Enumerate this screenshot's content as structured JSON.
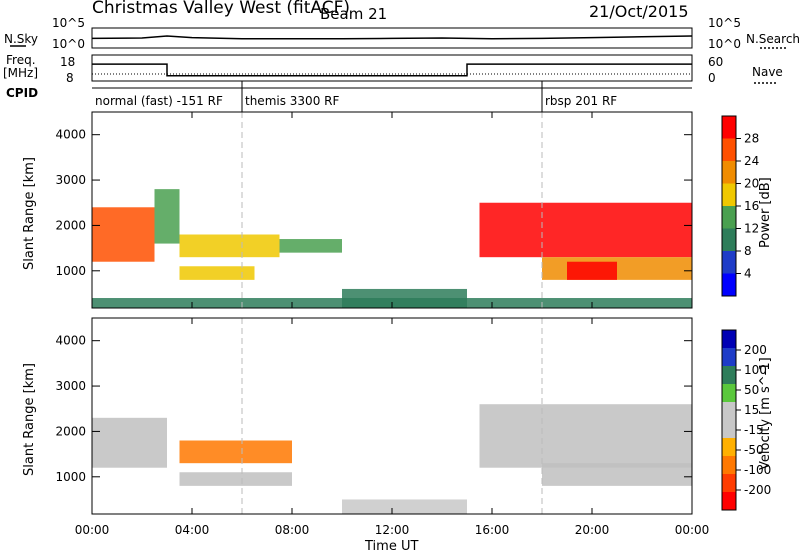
{
  "header": {
    "station": "Christmas Valley West (fitACF)",
    "beam": "Beam 21",
    "date": "21/Oct/2015"
  },
  "left_labels": {
    "nsky": "N.Sky",
    "freq_line1": "Freq.",
    "freq_line2": "[MHz]",
    "cpid": "CPID"
  },
  "right_labels": {
    "nsearch": "N.Search",
    "nave": "Nave"
  },
  "noise_axis": {
    "left_ticks": [
      "10^5",
      "10^0"
    ],
    "right_ticks": [
      "10^5",
      "10^0"
    ]
  },
  "freq_axis": {
    "left_ticks": [
      "18",
      "8"
    ],
    "right_ticks": [
      "60",
      "0"
    ]
  },
  "cpid_segments": [
    {
      "label": "normal (fast) -151 RF",
      "start_hour": 0
    },
    {
      "label": "themis 3300 RF",
      "start_hour": 6
    },
    {
      "label": "rbsp 201 RF",
      "start_hour": 18
    }
  ],
  "x_axis": {
    "label": "Time UT",
    "ticks": [
      "00:00",
      "04:00",
      "08:00",
      "12:00",
      "16:00",
      "20:00",
      "00:00"
    ]
  },
  "y_axis": {
    "label": "Slant Range [km]",
    "ticks": [
      "4000",
      "3000",
      "2000",
      "1000"
    ]
  },
  "colors": {
    "power_scale": [
      "#0000ff",
      "#1e3cc8",
      "#2e7d5a",
      "#4aa050",
      "#f0c800",
      "#f08c00",
      "#ff5000",
      "#ff0000"
    ],
    "velocity_scale": [
      "#0000b4",
      "#1e3cc8",
      "#2e7d5a",
      "#5ac83c",
      "#c8c8c8",
      "#c8c8c8",
      "#ffb000",
      "#ff7800",
      "#ff3c00",
      "#ff0000"
    ],
    "ground_scatter": "#c0c0c0"
  },
  "power_colorbar": {
    "label": "Power [dB]",
    "ticks": [
      "28",
      "24",
      "20",
      "16",
      "12",
      "8",
      "4"
    ]
  },
  "velocity_colorbar": {
    "label": "Velocity [m s^-1]",
    "ticks": [
      "200",
      "100",
      "50",
      "15",
      "-15",
      "-50",
      "-100",
      "-200"
    ]
  },
  "chart_data": [
    {
      "type": "line",
      "panel": "sky noise / search noise",
      "y_log_range": [
        0,
        5
      ],
      "x": [
        0,
        2,
        3,
        4,
        6,
        8,
        10,
        12,
        14,
        15,
        16,
        18,
        20,
        22,
        24
      ],
      "series": [
        {
          "name": "N.Sky",
          "values": [
            2.4,
            2.5,
            3.0,
            2.6,
            2.3,
            2.3,
            2.3,
            2.4,
            2.5,
            2.4,
            2.3,
            2.4,
            2.6,
            2.8,
            3.0
          ]
        }
      ]
    },
    {
      "type": "line",
      "panel": "frequency / nave",
      "xlabel": "",
      "ylabel": "Freq. [MHz]",
      "ylim": [
        8,
        18
      ],
      "x": [
        0,
        3,
        3,
        15,
        15,
        24
      ],
      "series": [
        {
          "name": "Freq.",
          "values": [
            14.5,
            14.5,
            10.0,
            10.0,
            14.5,
            14.5
          ]
        }
      ]
    },
    {
      "type": "heatmap",
      "panel": "Power [dB]",
      "xlabel": "Time UT",
      "ylabel": "Slant Range [km]",
      "xlim": [
        0,
        24
      ],
      "ylim": [
        180,
        4500
      ],
      "zlim": [
        0,
        32
      ],
      "regions": [
        {
          "t": [
            0,
            2.5
          ],
          "range": [
            1200,
            2400
          ],
          "value": 26
        },
        {
          "t": [
            2.5,
            3.5
          ],
          "range": [
            1600,
            2800
          ],
          "value": 14
        },
        {
          "t": [
            3.5,
            7.5
          ],
          "range": [
            1300,
            1800
          ],
          "value": 18
        },
        {
          "t": [
            3.5,
            6.5
          ],
          "range": [
            800,
            1100
          ],
          "value": 16
        },
        {
          "t": [
            7.5,
            10
          ],
          "range": [
            1400,
            1700
          ],
          "value": 14
        },
        {
          "t": [
            10,
            15
          ],
          "range": [
            180,
            600
          ],
          "value": 10
        },
        {
          "t": [
            15.5,
            24
          ],
          "range": [
            1300,
            2500
          ],
          "value": 28
        },
        {
          "t": [
            18,
            24
          ],
          "range": [
            800,
            1300
          ],
          "value": 20
        },
        {
          "t": [
            19,
            21
          ],
          "range": [
            800,
            1200
          ],
          "value": 28
        },
        {
          "t": [
            0,
            24
          ],
          "range": [
            180,
            400
          ],
          "value": 8
        }
      ]
    },
    {
      "type": "heatmap",
      "panel": "Velocity [m s^-1]",
      "xlabel": "Time UT",
      "ylabel": "Slant Range [km]",
      "xlim": [
        0,
        24
      ],
      "ylim": [
        180,
        4500
      ],
      "zlim": [
        -250,
        250
      ],
      "regions": [
        {
          "t": [
            0,
            3
          ],
          "range": [
            1200,
            2300
          ],
          "value": 0,
          "ground_scatter": true
        },
        {
          "t": [
            3.5,
            8
          ],
          "range": [
            1300,
            1800
          ],
          "value": -120
        },
        {
          "t": [
            3.5,
            8
          ],
          "range": [
            800,
            1100
          ],
          "value": 0,
          "ground_scatter": true
        },
        {
          "t": [
            15.5,
            24
          ],
          "range": [
            1200,
            2600
          ],
          "value": 0,
          "ground_scatter": true
        },
        {
          "t": [
            18,
            24
          ],
          "range": [
            800,
            1300
          ],
          "value": 0,
          "ground_scatter": true
        },
        {
          "t": [
            10,
            15
          ],
          "range": [
            180,
            500
          ],
          "value": -30
        }
      ]
    }
  ]
}
